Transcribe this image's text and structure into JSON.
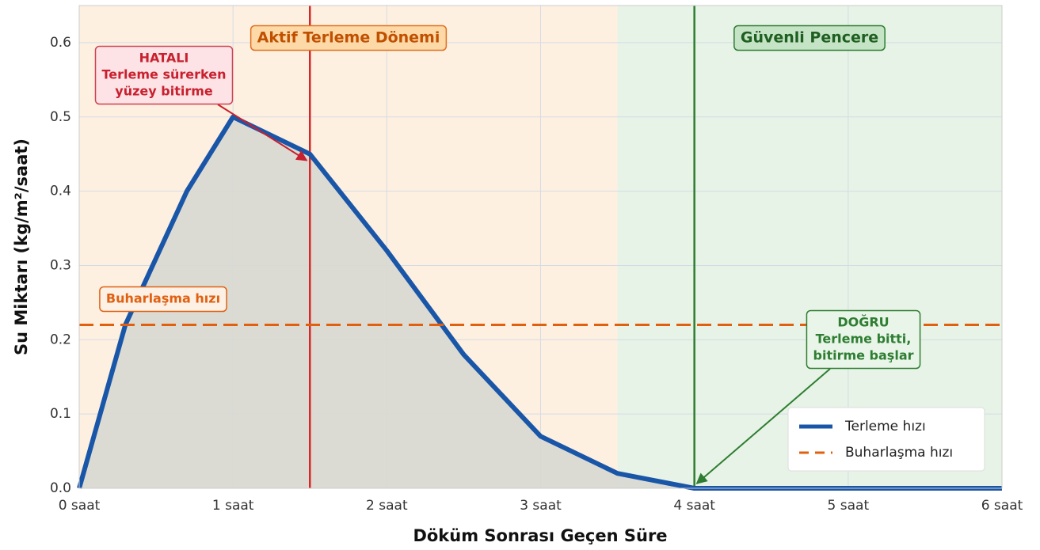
{
  "chart_data": {
    "type": "line",
    "x_label": "Döküm Sonrası Geçen Süre",
    "y_label": "Su Miktarı (kg/m²/saat)",
    "x": [
      0,
      0.3,
      0.7,
      1.0,
      1.5,
      2.0,
      2.5,
      3.0,
      3.5,
      4.0,
      6.0
    ],
    "series": [
      {
        "name": "Terleme hızı",
        "color": "#1a56a8",
        "style": "solid",
        "fill": "#d8d8d2",
        "values": [
          0,
          0.22,
          0.4,
          0.5,
          0.45,
          0.32,
          0.18,
          0.07,
          0.02,
          0.0,
          0.0
        ]
      },
      {
        "name": "Buharlaşma hızı",
        "color": "#e06010",
        "style": "dashed",
        "values": [
          0.22,
          0.22,
          0.22,
          0.22,
          0.22,
          0.22,
          0.22,
          0.22,
          0.22,
          0.22,
          0.22
        ]
      }
    ],
    "xlim": [
      0,
      6
    ],
    "ylim": [
      0,
      0.65
    ],
    "xticks": [
      {
        "value": 0,
        "label": "0 saat"
      },
      {
        "value": 1,
        "label": "1 saat"
      },
      {
        "value": 2,
        "label": "2 saat"
      },
      {
        "value": 3,
        "label": "3 saat"
      },
      {
        "value": 4,
        "label": "4 saat"
      },
      {
        "value": 5,
        "label": "5 saat"
      },
      {
        "value": 6,
        "label": "6 saat"
      }
    ],
    "yticks": [
      {
        "value": 0,
        "label": "0.0"
      },
      0.1,
      0.2,
      0.3,
      0.4,
      0.5,
      0.6
    ],
    "grid": true,
    "legend": "lower right",
    "regions": [
      {
        "x": [
          0,
          3.5
        ],
        "color": "#fdf0e0",
        "label": "Aktif Terleme Dönemi"
      },
      {
        "x": [
          3.5,
          6
        ],
        "color": "#e6f3e6",
        "label": "Güvenli Pencere"
      }
    ],
    "vlines": [
      {
        "x": 1.5,
        "color": "#d62728"
      },
      {
        "x": 4,
        "color": "#2e7d32"
      }
    ],
    "annotations": [
      {
        "lines": [
          "HATALI",
          "Terleme sürerken",
          "yüzey bitirme"
        ]
      },
      {
        "lines": [
          "Buharlaşma hızı"
        ]
      },
      {
        "lines": [
          "DOĞRU",
          "Terleme bitti,",
          "bitirme başlar"
        ]
      }
    ]
  }
}
